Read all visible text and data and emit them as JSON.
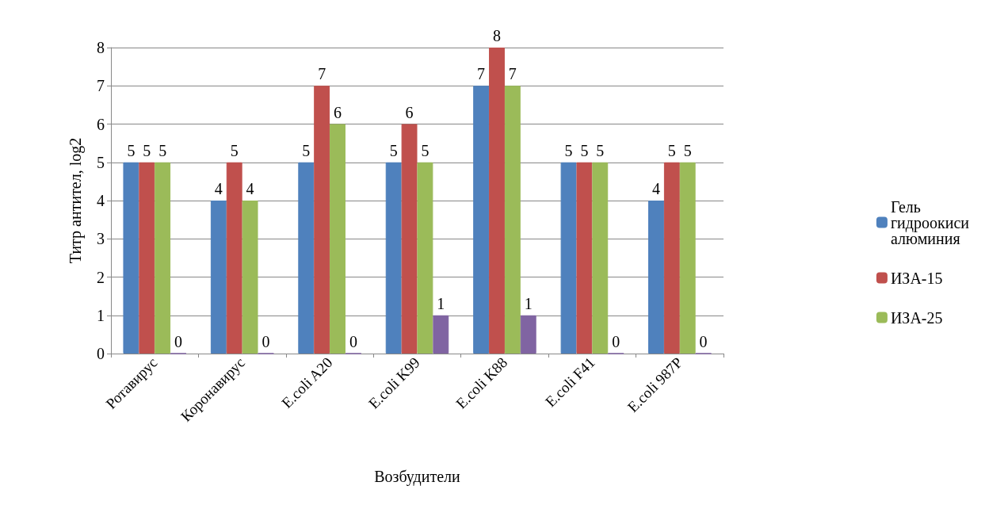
{
  "chart_data": {
    "type": "bar",
    "xlabel": "Возбудители",
    "ylabel": "Титр антител, log2",
    "categories": [
      "Ротавирус",
      "Коронавирус",
      "E.coli A20",
      "E.coli K99",
      "E.coli K88",
      "E.coli F41",
      "E.coli 987P"
    ],
    "series": [
      {
        "name": "Гель гидроокиси алюминия",
        "color": "#4f81bd",
        "values": [
          5,
          4,
          5,
          5,
          7,
          5,
          4
        ]
      },
      {
        "name": "ИЗА-15",
        "color": "#c0504d",
        "values": [
          5,
          5,
          7,
          6,
          8,
          5,
          5
        ]
      },
      {
        "name": "ИЗА-25",
        "color": "#9bbb59",
        "values": [
          5,
          4,
          6,
          5,
          7,
          5,
          5
        ]
      },
      {
        "color": "#8064a2",
        "values": [
          0,
          0,
          0,
          1,
          1,
          0,
          0
        ]
      }
    ],
    "ylim": [
      0,
      8
    ],
    "yticks": [
      0,
      1,
      2,
      3,
      4,
      5,
      6,
      7,
      8
    ],
    "grid": "y",
    "legend": "right",
    "data_labels": true
  }
}
